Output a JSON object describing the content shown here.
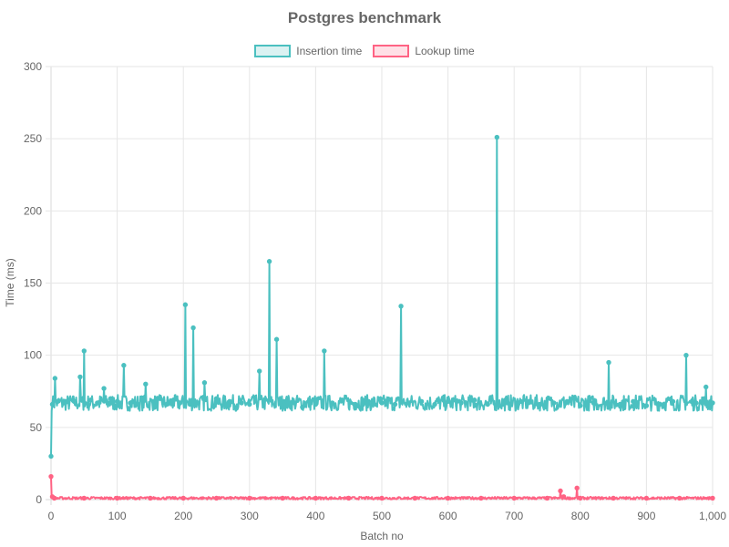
{
  "chart_data": {
    "type": "line",
    "title": "Postgres benchmark",
    "xlabel": "Batch no",
    "ylabel": "Time (ms)",
    "xlim": [
      0,
      1000
    ],
    "ylim": [
      0,
      300
    ],
    "x_ticks": [
      0,
      100,
      200,
      300,
      400,
      500,
      600,
      700,
      800,
      900,
      1000
    ],
    "x_tick_labels": [
      "0",
      "100",
      "200",
      "300",
      "400",
      "500",
      "600",
      "700",
      "800",
      "900",
      "1,000"
    ],
    "y_ticks": [
      0,
      50,
      100,
      150,
      200,
      250,
      300
    ],
    "grid": true,
    "legend_position": "top-center",
    "series": [
      {
        "name": "Insertion time",
        "color": "#4bc0c0",
        "fill": "#dbf2f2",
        "baseline": 67,
        "x": [
          0,
          2,
          6,
          10,
          20,
          35,
          44,
          50,
          60,
          70,
          80,
          90,
          100,
          110,
          120,
          130,
          143,
          155,
          165,
          175,
          185,
          195,
          203,
          210,
          215,
          222,
          232,
          250,
          270,
          288,
          300,
          315,
          330,
          341,
          352,
          368,
          380,
          400,
          413,
          425,
          440,
          460,
          480,
          500,
          520,
          529,
          540,
          560,
          580,
          600,
          620,
          640,
          660,
          674,
          690,
          710,
          740,
          760,
          780,
          800,
          820,
          843,
          860,
          880,
          900,
          920,
          940,
          960,
          975,
          990,
          1000
        ],
        "y": [
          30,
          66,
          84,
          68,
          67,
          68,
          85,
          103,
          69,
          67,
          77,
          70,
          68,
          93,
          67,
          66,
          80,
          68,
          70,
          66,
          69,
          67,
          135,
          66,
          119,
          67,
          81,
          70,
          68,
          67,
          66,
          89,
          165,
          111,
          68,
          67,
          64,
          66,
          103,
          67,
          69,
          66,
          68,
          67,
          66,
          134,
          67,
          68,
          66,
          68,
          67,
          69,
          66,
          251,
          67,
          68,
          66,
          67,
          68,
          65,
          67,
          95,
          66,
          68,
          65,
          66,
          68,
          100,
          67,
          78,
          67
        ]
      },
      {
        "name": "Lookup time",
        "color": "#ff6384",
        "fill": "#ffe0e6",
        "baseline": 1,
        "x": [
          0,
          2,
          5,
          50,
          100,
          150,
          200,
          250,
          300,
          350,
          400,
          450,
          500,
          550,
          600,
          650,
          700,
          750,
          770,
          775,
          795,
          800,
          850,
          900,
          950,
          1000
        ],
        "y": [
          16,
          2,
          1,
          1,
          1,
          1,
          1,
          1,
          1,
          1,
          1,
          1,
          1,
          1,
          1,
          1,
          1,
          1,
          6,
          2,
          8,
          1,
          1,
          1,
          1,
          1
        ]
      }
    ]
  }
}
